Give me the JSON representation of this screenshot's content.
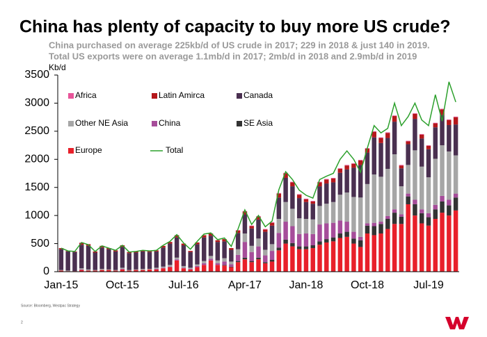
{
  "chart_data": {
    "type": "bar",
    "stacked": true,
    "title": "China has plenty of capacity to buy more US crude?",
    "subtitle": [
      "China purchased on average 225kb/d of US crude in 2017; 229 in 2018 & just 140 in 2019.",
      "Total US exports were on average 1.1mb/d in 2017; 2mb/d in 2018 and 2.9mb/d in 2019"
    ],
    "y_label": "Kb/d",
    "source": "Source: Bloomberg, Westpac Strategy",
    "page_number": "2",
    "categories": [
      "Jan-15",
      null,
      null,
      null,
      null,
      null,
      null,
      null,
      null,
      "Oct-15",
      null,
      null,
      null,
      null,
      null,
      null,
      null,
      null,
      "Jul-16",
      null,
      null,
      null,
      null,
      null,
      null,
      null,
      null,
      "Apr-17",
      null,
      null,
      null,
      null,
      null,
      null,
      null,
      null,
      "Jan-18",
      null,
      null,
      null,
      null,
      null,
      null,
      null,
      null,
      "Oct-18",
      null,
      null,
      null,
      null,
      null,
      null,
      null,
      null,
      "Jul-19",
      null,
      null,
      null,
      null
    ],
    "ylim": [
      0,
      3500
    ],
    "yticks": [
      0,
      500,
      1000,
      1500,
      2000,
      2500,
      3000,
      3500
    ],
    "series": [
      {
        "name": "Africa",
        "color": "#e8559a",
        "values": [
          0,
          0,
          0,
          10,
          0,
          0,
          0,
          0,
          0,
          0,
          0,
          0,
          0,
          0,
          0,
          0,
          0,
          0,
          0,
          0,
          0,
          0,
          0,
          0,
          0,
          0,
          10,
          10,
          10,
          10,
          10,
          10,
          10,
          10,
          10,
          10,
          10,
          10,
          10,
          10,
          10,
          10,
          10,
          10,
          10,
          10,
          10,
          10,
          10,
          10,
          10,
          10,
          10,
          10,
          10,
          10,
          10,
          10,
          10
        ]
      },
      {
        "name": "Latin Amirca",
        "color": "#b5171b",
        "values": [
          20,
          10,
          10,
          30,
          30,
          20,
          30,
          20,
          20,
          30,
          20,
          20,
          20,
          20,
          20,
          30,
          30,
          40,
          30,
          20,
          30,
          40,
          40,
          30,
          40,
          30,
          40,
          50,
          40,
          50,
          40,
          50,
          70,
          80,
          70,
          60,
          50,
          40,
          70,
          70,
          70,
          70,
          70,
          70,
          80,
          70,
          100,
          90,
          90,
          100,
          50,
          50,
          90,
          70,
          60,
          70,
          100,
          90,
          130
        ]
      },
      {
        "name": "Canada",
        "color": "#4a3050",
        "values": [
          370,
          340,
          340,
          420,
          420,
          310,
          380,
          360,
          330,
          370,
          300,
          300,
          310,
          300,
          290,
          340,
          380,
          360,
          370,
          280,
          360,
          420,
          360,
          330,
          300,
          210,
          290,
          340,
          310,
          340,
          320,
          330,
          380,
          430,
          400,
          360,
          300,
          280,
          350,
          360,
          350,
          390,
          410,
          520,
          580,
          560,
          660,
          600,
          550,
          580,
          320,
          370,
          560,
          500,
          500,
          560,
          540,
          470,
          550
        ]
      },
      {
        "name": "Other NE Asia",
        "color": "#a6a6a6",
        "values": [
          10,
          10,
          0,
          20,
          20,
          10,
          20,
          10,
          10,
          20,
          10,
          10,
          20,
          10,
          20,
          20,
          30,
          30,
          30,
          20,
          30,
          40,
          50,
          50,
          60,
          50,
          100,
          150,
          110,
          140,
          100,
          120,
          250,
          350,
          310,
          280,
          260,
          260,
          330,
          350,
          370,
          460,
          520,
          620,
          700,
          700,
          860,
          800,
          840,
          980,
          500,
          510,
          880,
          760,
          640,
          820,
          900,
          860,
          680
        ]
      },
      {
        "name": "China",
        "color": "#a64d9a",
        "values": [
          0,
          0,
          0,
          10,
          0,
          0,
          0,
          0,
          0,
          10,
          0,
          0,
          0,
          0,
          10,
          10,
          10,
          20,
          10,
          10,
          20,
          30,
          30,
          30,
          60,
          40,
          110,
          280,
          160,
          200,
          120,
          160,
          260,
          320,
          300,
          220,
          230,
          200,
          300,
          280,
          260,
          230,
          180,
          120,
          60,
          40,
          60,
          40,
          50,
          60,
          40,
          50,
          80,
          70,
          70,
          80,
          100,
          100,
          70
        ]
      },
      {
        "name": "SE Asia",
        "color": "#333333",
        "values": [
          0,
          0,
          0,
          0,
          0,
          0,
          0,
          0,
          0,
          0,
          0,
          0,
          0,
          0,
          0,
          0,
          0,
          0,
          0,
          0,
          0,
          0,
          0,
          0,
          10,
          10,
          20,
          30,
          20,
          30,
          20,
          30,
          50,
          70,
          60,
          50,
          50,
          50,
          60,
          60,
          70,
          80,
          90,
          90,
          120,
          140,
          160,
          170,
          180,
          200,
          130,
          140,
          200,
          180,
          150,
          170,
          200,
          180,
          230
        ]
      },
      {
        "name": "Europe",
        "color": "#e8202a",
        "values": [
          20,
          10,
          10,
          30,
          20,
          20,
          30,
          30,
          20,
          40,
          20,
          30,
          30,
          40,
          40,
          60,
          80,
          200,
          60,
          40,
          80,
          120,
          200,
          120,
          110,
          80,
          170,
          220,
          170,
          220,
          150,
          180,
          380,
          500,
          450,
          400,
          400,
          420,
          480,
          520,
          540,
          600,
          620,
          500,
          440,
          680,
          650,
          680,
          760,
          850,
          850,
          1200,
          1000,
          860,
          820,
          940,
          1050,
          1000,
          1090
        ]
      },
      {
        "name": "Total",
        "color": "#2ca02c",
        "type": "line",
        "values": [
          420,
          370,
          360,
          520,
          480,
          360,
          460,
          420,
          380,
          470,
          350,
          360,
          380,
          370,
          380,
          470,
          540,
          660,
          510,
          400,
          540,
          670,
          690,
          570,
          600,
          450,
          760,
          1100,
          840,
          1000,
          800,
          900,
          1460,
          1780,
          1640,
          1450,
          1360,
          1310,
          1640,
          1700,
          1750,
          2000,
          2150,
          2000,
          1770,
          2200,
          2600,
          2470,
          2550,
          3000,
          2600,
          2760,
          3000,
          2700,
          2600,
          3150,
          2680,
          3380,
          3020
        ]
      }
    ]
  }
}
